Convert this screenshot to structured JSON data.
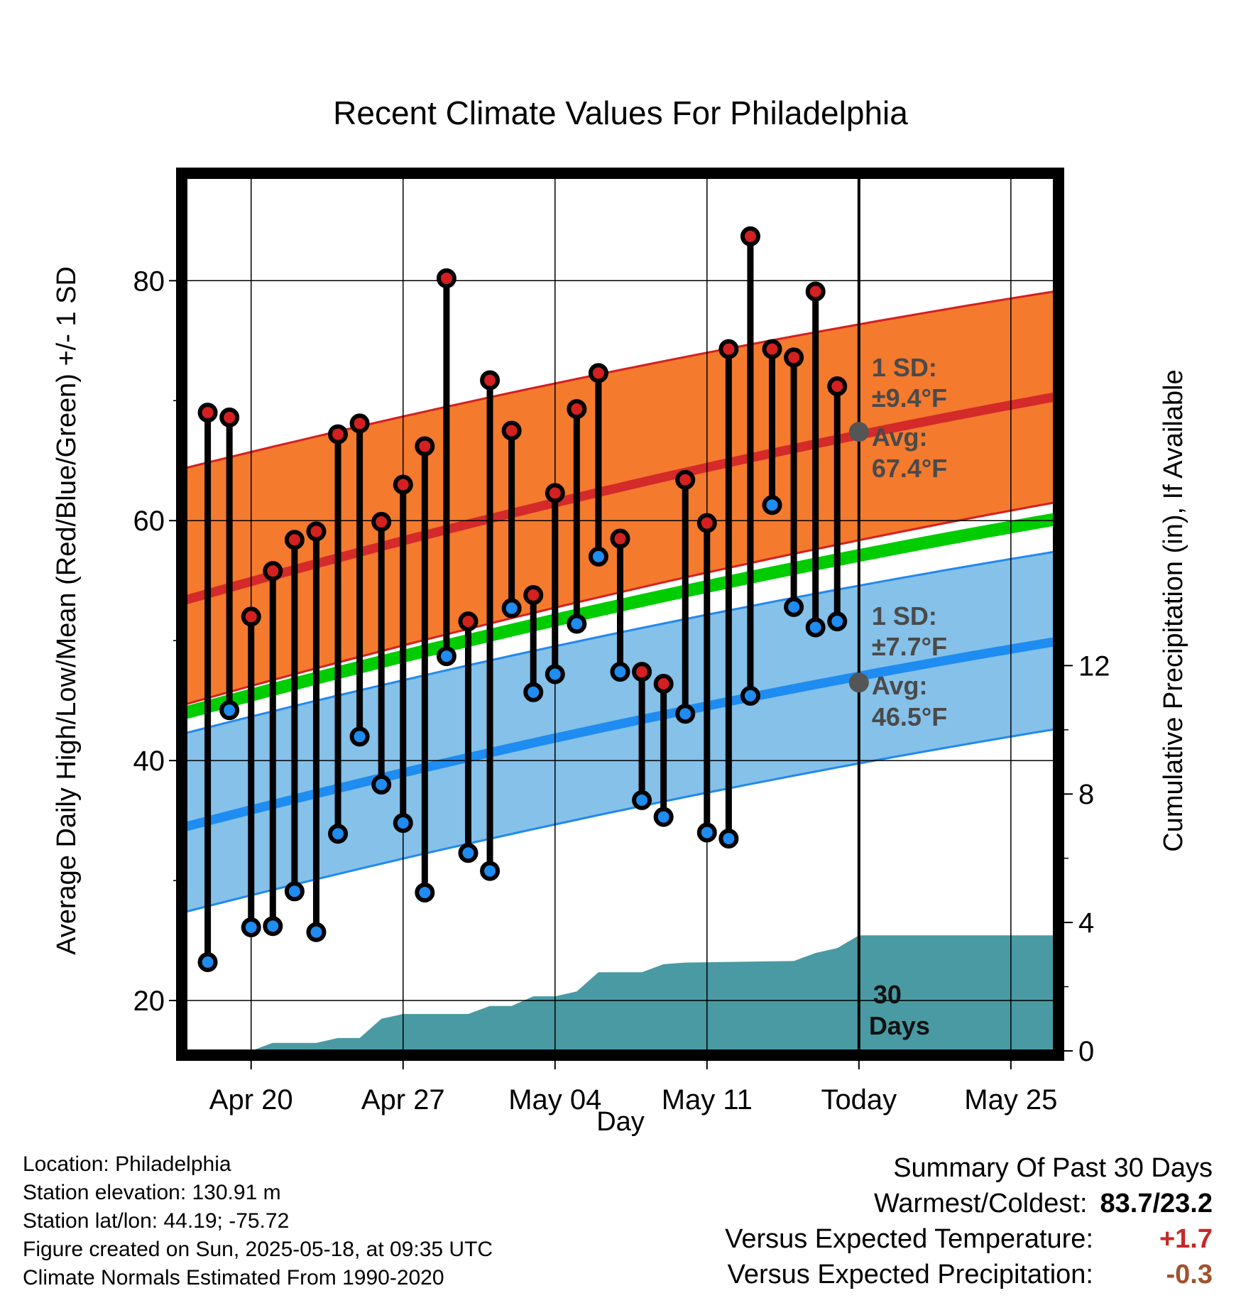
{
  "colors": {
    "high_band": "#f47a2e",
    "high_band_edge": "#d42020",
    "high_mean_line": "#d42a2a",
    "low_band": "#85c1e9",
    "low_band_edge": "#2288ee",
    "low_mean_line": "#1e8cf0",
    "mean_line": "#00cc00",
    "precip_fill": "#4a9aa3",
    "high_marker": "#d42020",
    "low_marker": "#1e8cf0",
    "avg_marker": "#555555",
    "warm_value": "#c62828",
    "precip_value": "#a0522d"
  },
  "chart_data": {
    "type": "range-dot",
    "title": "Recent Climate Values For Philadelphia",
    "xlabel": "Day",
    "ylabel_left": "Average Daily High/Low/Mean (Red/Blue/Green) +/- 1 SD",
    "ylabel_right": "Cumulative Precipitation (in), If Available",
    "x_ticks": [
      {
        "date": "2025-04-20",
        "label": "Apr 20"
      },
      {
        "date": "2025-04-27",
        "label": "Apr 27"
      },
      {
        "date": "2025-05-04",
        "label": "May 04"
      },
      {
        "date": "2025-05-11",
        "label": "May 11"
      },
      {
        "date": "2025-05-18",
        "label": "Today"
      },
      {
        "date": "2025-05-25",
        "label": "May 25"
      }
    ],
    "xlim": [
      "2025-04-17",
      "2025-05-27"
    ],
    "ylim_left": [
      15.8,
      88.6
    ],
    "yticks_left": [
      20,
      40,
      60,
      80
    ],
    "ylim_right": [
      0,
      27.2
    ],
    "yticks_right": [
      0,
      4,
      8,
      12
    ],
    "today": "2025-05-18",
    "days": [
      {
        "date": "2025-04-18",
        "high": 69.0,
        "low": 23.2
      },
      {
        "date": "2025-04-19",
        "high": 68.6,
        "low": 44.2
      },
      {
        "date": "2025-04-20",
        "high": 52.0,
        "low": 26.1
      },
      {
        "date": "2025-04-21",
        "high": 55.8,
        "low": 26.2
      },
      {
        "date": "2025-04-22",
        "high": 58.4,
        "low": 29.1
      },
      {
        "date": "2025-04-23",
        "high": 59.1,
        "low": 25.7
      },
      {
        "date": "2025-04-24",
        "high": 67.2,
        "low": 33.9
      },
      {
        "date": "2025-04-25",
        "high": 68.1,
        "low": 42.0
      },
      {
        "date": "2025-04-26",
        "high": 59.9,
        "low": 38.0
      },
      {
        "date": "2025-04-27",
        "high": 63.0,
        "low": 34.8
      },
      {
        "date": "2025-04-28",
        "high": 66.2,
        "low": 29.0
      },
      {
        "date": "2025-04-29",
        "high": 80.2,
        "low": 48.7
      },
      {
        "date": "2025-04-30",
        "high": 51.6,
        "low": 32.3
      },
      {
        "date": "2025-05-01",
        "high": 71.7,
        "low": 30.8
      },
      {
        "date": "2025-05-02",
        "high": 67.5,
        "low": 52.7
      },
      {
        "date": "2025-05-03",
        "high": 53.8,
        "low": 45.7
      },
      {
        "date": "2025-05-04",
        "high": 62.3,
        "low": 47.2
      },
      {
        "date": "2025-05-05",
        "high": 69.3,
        "low": 51.4
      },
      {
        "date": "2025-05-06",
        "high": 72.3,
        "low": 57.0
      },
      {
        "date": "2025-05-07",
        "high": 58.5,
        "low": 47.4
      },
      {
        "date": "2025-05-08",
        "high": 47.4,
        "low": 36.7
      },
      {
        "date": "2025-05-09",
        "high": 46.4,
        "low": 35.3
      },
      {
        "date": "2025-05-10",
        "high": 63.4,
        "low": 43.9
      },
      {
        "date": "2025-05-11",
        "high": 59.8,
        "low": 34.0
      },
      {
        "date": "2025-05-12",
        "high": 74.3,
        "low": 33.5
      },
      {
        "date": "2025-05-13",
        "high": 83.7,
        "low": 45.4
      },
      {
        "date": "2025-05-14",
        "high": 74.3,
        "low": 61.3
      },
      {
        "date": "2025-05-15",
        "high": 73.6,
        "low": 52.8
      },
      {
        "date": "2025-05-16",
        "high": 79.1,
        "low": 51.1
      },
      {
        "date": "2025-05-17",
        "high": 71.2,
        "low": 51.6
      }
    ],
    "normals": {
      "dates": [
        "2025-04-17",
        "2025-05-27"
      ],
      "high_mean": [
        53.4,
        70.3
      ],
      "high_upper": [
        64.4,
        79.1
      ],
      "high_lower": [
        44.7,
        61.5
      ],
      "mean": [
        44.0,
        60.1
      ],
      "low_mean": [
        34.5,
        49.9
      ],
      "low_upper": [
        42.3,
        57.4
      ],
      "low_lower": [
        27.4,
        42.6
      ]
    },
    "precip": [
      {
        "date": "2025-04-17",
        "value": 0.0
      },
      {
        "date": "2025-04-20",
        "value": 0.0
      },
      {
        "date": "2025-04-21",
        "value": 0.25
      },
      {
        "date": "2025-04-23",
        "value": 0.25
      },
      {
        "date": "2025-04-24",
        "value": 0.4
      },
      {
        "date": "2025-04-25",
        "value": 0.4
      },
      {
        "date": "2025-04-26",
        "value": 1.0
      },
      {
        "date": "2025-04-27",
        "value": 1.15
      },
      {
        "date": "2025-04-30",
        "value": 1.15
      },
      {
        "date": "2025-05-01",
        "value": 1.4
      },
      {
        "date": "2025-05-02",
        "value": 1.4
      },
      {
        "date": "2025-05-03",
        "value": 1.7
      },
      {
        "date": "2025-05-04",
        "value": 1.7
      },
      {
        "date": "2025-05-05",
        "value": 1.85
      },
      {
        "date": "2025-05-06",
        "value": 2.45
      },
      {
        "date": "2025-05-08",
        "value": 2.45
      },
      {
        "date": "2025-05-09",
        "value": 2.7
      },
      {
        "date": "2025-05-10",
        "value": 2.75
      },
      {
        "date": "2025-05-15",
        "value": 2.8
      },
      {
        "date": "2025-05-16",
        "value": 3.05
      },
      {
        "date": "2025-05-17",
        "value": 3.2
      },
      {
        "date": "2025-05-18",
        "value": 3.6
      },
      {
        "date": "2025-05-27",
        "value": 3.6
      }
    ],
    "annotations": {
      "high_sd_label": "1 SD:",
      "high_sd_value": "±9.4°F",
      "high_avg_label": "Avg:",
      "high_avg_value": "67.4°F",
      "high_avg": 67.4,
      "low_sd_label": "1 SD:",
      "low_sd_value": "±7.7°F",
      "low_avg_label": "Avg:",
      "low_avg_value": "46.5°F",
      "low_avg": 46.5,
      "days_count": "30",
      "days_word": "Days"
    }
  },
  "meta": {
    "location": "Location: Philadelphia",
    "elevation": "Station elevation: 130.91 m",
    "latlon": "Station lat/lon: 44.19; -75.72",
    "created": "Figure created on Sun, 2025-05-18, at 09:35 UTC",
    "normals": "Climate Normals Estimated From 1990-2020"
  },
  "summary": {
    "heading": "Summary Of Past 30 Days",
    "warm_cold_label": "Warmest/Coldest:",
    "warm_cold_value": "83.7/23.2",
    "temp_label": "Versus Expected Temperature:",
    "temp_value": "+1.7",
    "precip_label": "Versus Expected Precipitation:",
    "precip_value": "-0.3"
  }
}
